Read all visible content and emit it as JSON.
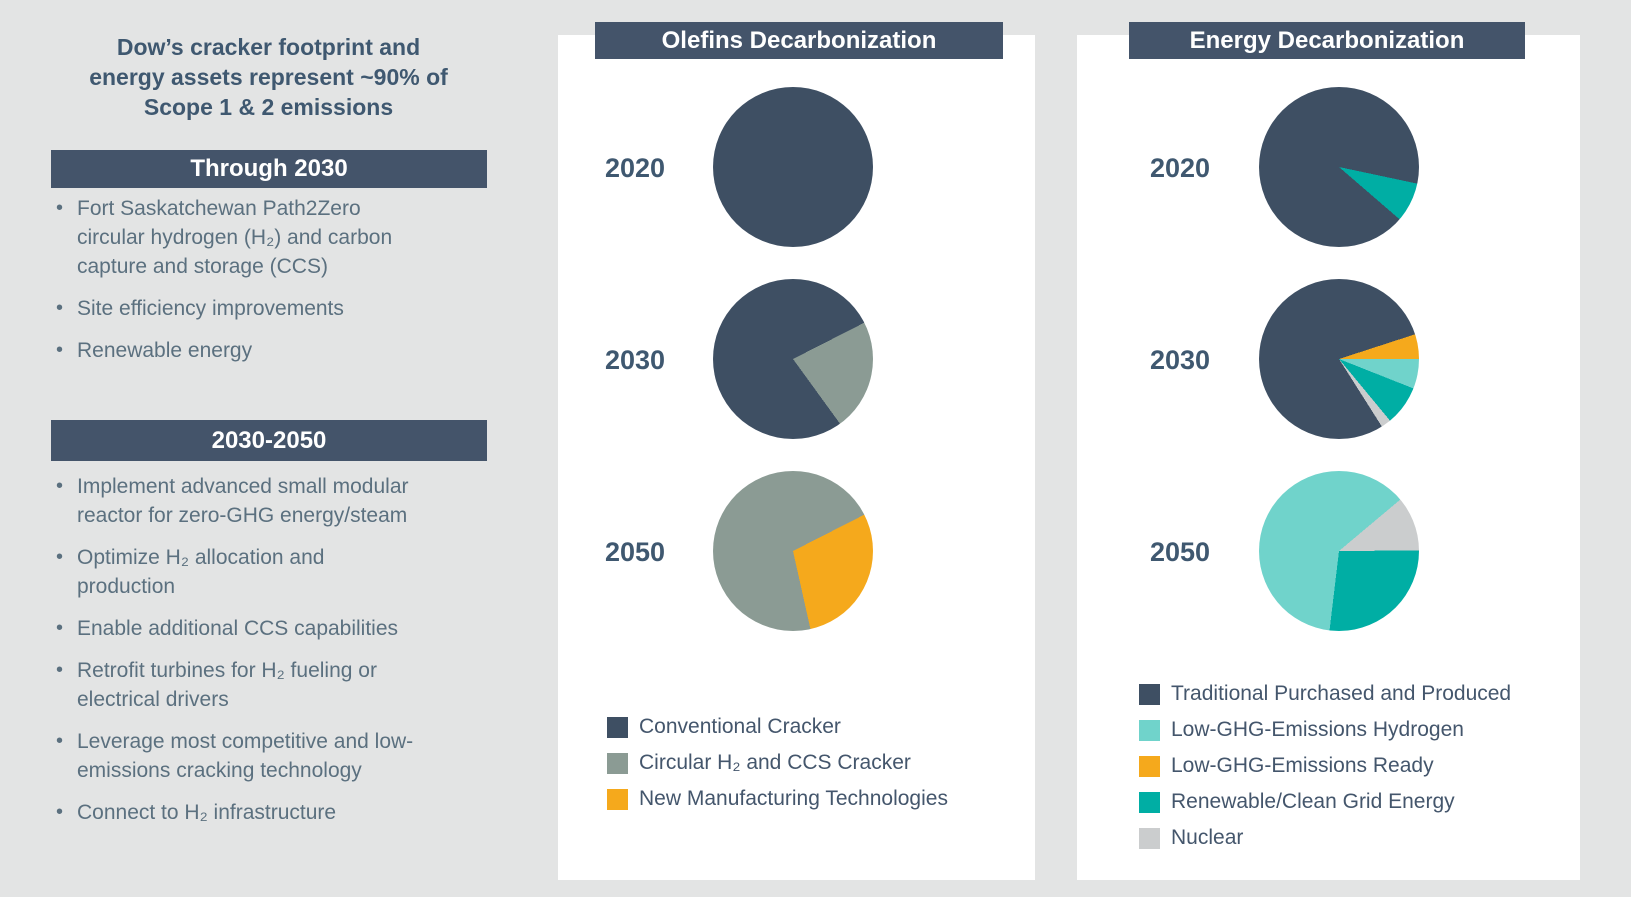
{
  "background_color": "#E3E4E4",
  "palette": {
    "dark": "#3E4F63",
    "sage": "#8B9B94",
    "amber": "#F5A91C",
    "aqua": "#70D3CB",
    "teal": "#00AEA4",
    "gray": "#CBCDCE"
  },
  "left_panel": {
    "title_lines": [
      "Dow’s cracker footprint and",
      "energy assets represent ~90% of",
      "Scope 1 & 2 emissions"
    ],
    "sections": [
      {
        "header": "Through 2030",
        "bullets": [
          [
            "Fort Saskatchewan Path2Zero",
            "circular hydrogen (H₂) and carbon",
            "capture and storage (CCS)"
          ],
          [
            "Site efficiency improvements"
          ],
          [
            "Renewable energy"
          ]
        ]
      },
      {
        "header": "2030-2050",
        "bullets": [
          [
            "Implement advanced small modular",
            "reactor for zero-GHG energy/steam"
          ],
          [
            "Optimize H₂ allocation and",
            "production"
          ],
          [
            "Enable additional CCS capabilities"
          ],
          [
            "Retrofit turbines for H₂ fueling or",
            "electrical drivers"
          ],
          [
            "Leverage most competitive and low-",
            "emissions cracking technology"
          ],
          [
            "Connect to H₂ infrastructure"
          ]
        ]
      }
    ]
  },
  "chart_data": [
    {
      "type": "pie",
      "title": "Olefins Decarbonization",
      "legend_position": "bottom",
      "pies": [
        {
          "year": "2020",
          "start_deg": 0,
          "slices": [
            {
              "label": "Conventional Cracker",
              "pct": 100,
              "color": "dark"
            }
          ]
        },
        {
          "year": "2030",
          "start_deg": 63,
          "slices": [
            {
              "label": "Circular H₂ and CCS Cracker",
              "pct": 22.5,
              "color": "sage"
            },
            {
              "label": "Conventional Cracker",
              "pct": 77.5,
              "color": "dark"
            }
          ]
        },
        {
          "year": "2050",
          "start_deg": 63,
          "slices": [
            {
              "label": "New Manufacturing Technologies",
              "pct": 29,
              "color": "amber"
            },
            {
              "label": "Circular H₂ and CCS Cracker",
              "pct": 71,
              "color": "sage"
            }
          ]
        }
      ],
      "legend": [
        {
          "label": "Conventional Cracker",
          "color": "dark"
        },
        {
          "label": "Circular H₂ and CCS Cracker",
          "color": "sage"
        },
        {
          "label": "New Manufacturing Technologies",
          "color": "amber"
        }
      ]
    },
    {
      "type": "pie",
      "title": "Energy Decarbonization",
      "legend_position": "bottom",
      "pies": [
        {
          "year": "2020",
          "start_deg": 102,
          "slices": [
            {
              "label": "Renewable/Clean Grid Energy",
              "pct": 8,
              "color": "teal"
            },
            {
              "label": "Traditional Purchased and Produced",
              "pct": 92,
              "color": "dark"
            }
          ]
        },
        {
          "year": "2030",
          "start_deg": 72,
          "slices": [
            {
              "label": "Low-GHG-Emissions Ready",
              "pct": 5,
              "color": "amber"
            },
            {
              "label": "Low-GHG-Emissions Hydrogen",
              "pct": 6,
              "color": "aqua"
            },
            {
              "label": "Renewable/Clean Grid Energy",
              "pct": 8,
              "color": "teal"
            },
            {
              "label": "Nuclear",
              "pct": 2,
              "color": "gray"
            },
            {
              "label": "Traditional Purchased and Produced",
              "pct": 79,
              "color": "dark"
            }
          ]
        },
        {
          "year": "2050",
          "start_deg": 50,
          "slices": [
            {
              "label": "Nuclear",
              "pct": 11,
              "color": "gray"
            },
            {
              "label": "Renewable/Clean Grid Energy",
              "pct": 27,
              "color": "teal"
            },
            {
              "label": "Low-GHG-Emissions Hydrogen",
              "pct": 62,
              "color": "aqua"
            }
          ]
        }
      ],
      "legend": [
        {
          "label": "Traditional Purchased and Produced",
          "color": "dark"
        },
        {
          "label": "Low-GHG-Emissions Hydrogen",
          "color": "aqua"
        },
        {
          "label": "Low-GHG-Emissions Ready",
          "color": "amber"
        },
        {
          "label": "Renewable/Clean Grid Energy",
          "color": "teal"
        },
        {
          "label": "Nuclear",
          "color": "gray"
        }
      ]
    }
  ]
}
